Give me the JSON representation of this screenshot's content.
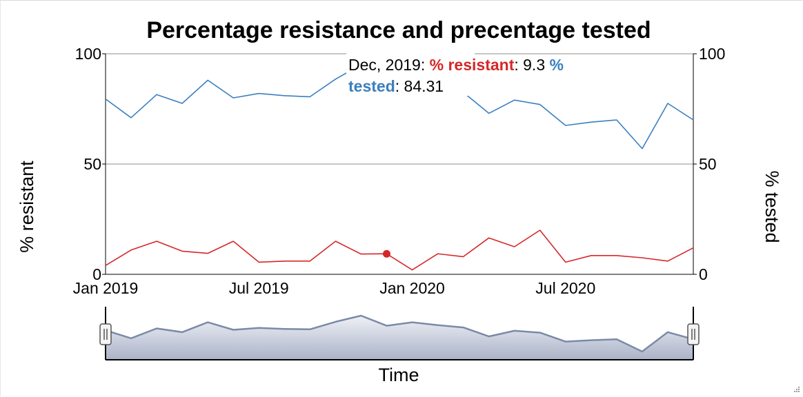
{
  "chart_data": {
    "type": "line",
    "title": "Percentage resistance and precentage tested",
    "xlabel": "Time",
    "ylabel_left": "% resistant",
    "ylabel_right": "% tested",
    "ylim_left": [
      0,
      100
    ],
    "ylim_right": [
      0,
      100
    ],
    "y_ticks": [
      "0",
      "50",
      "100"
    ],
    "x_ticks": [
      "Jan 2019",
      "Jul 2019",
      "Jan 2020",
      "Jul 2020"
    ],
    "x_tick_months": [
      0,
      6,
      12,
      18
    ],
    "x": [
      "Jan 2019",
      "Feb 2019",
      "Mar 2019",
      "Apr 2019",
      "May 2019",
      "Jun 2019",
      "Jul 2019",
      "Aug 2019",
      "Sep 2019",
      "Oct 2019",
      "Nov 2019",
      "Dec 2019",
      "Jan 2020",
      "Feb 2020",
      "Mar 2020",
      "Apr 2020",
      "May 2020",
      "Jun 2020",
      "Jul 2020",
      "Aug 2020",
      "Sep 2020",
      "Oct 2020",
      "Nov 2020",
      "Dec 2020"
    ],
    "series": [
      {
        "name": "% resistant",
        "color": "#d62728",
        "axis": "left",
        "values": [
          4,
          11,
          15,
          10.5,
          9.5,
          15,
          5.5,
          6,
          6,
          15,
          9.2,
          9.3,
          2,
          9.3,
          8,
          16.5,
          12.5,
          20,
          5.5,
          8.5,
          8.5,
          7.5,
          6,
          12
        ]
      },
      {
        "name": "% tested",
        "color": "#3a7fbf",
        "axis": "right",
        "values": [
          79.5,
          71,
          81.5,
          77.5,
          88,
          80,
          82,
          81,
          80.5,
          88.5,
          95,
          84.31,
          88,
          85,
          82.5,
          73,
          79,
          77,
          67.5,
          69,
          70,
          57,
          77.5,
          70
        ]
      }
    ],
    "grid": "horizontal",
    "highlight": {
      "index": 11,
      "series": "% resistant"
    },
    "tooltip": {
      "date": "Dec, 2019",
      "resistant_label": "% resistant",
      "resistant_value": "9.3",
      "tested_label_part1": "%",
      "tested_label_part2": "tested",
      "tested_value": "84.31"
    },
    "navigator_series": "% tested"
  }
}
